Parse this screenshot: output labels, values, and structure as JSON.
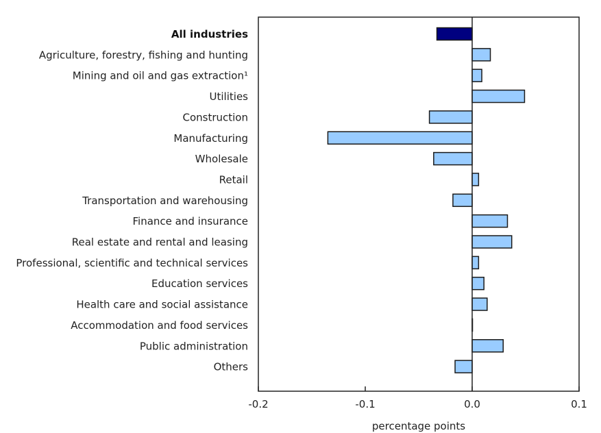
{
  "chart_data": {
    "type": "bar",
    "orientation": "horizontal",
    "title": "",
    "xlabel": "percentage points",
    "ylabel": "",
    "xlim": [
      -0.2,
      0.1
    ],
    "xticks": [
      "-0.2",
      "-0.1",
      "0.0",
      "0.1"
    ],
    "xtick_values": [
      -0.2,
      -0.1,
      0.0,
      0.1
    ],
    "grid": false,
    "legend": null,
    "categories": [
      "All industries",
      "Agriculture, forestry, fishing and hunting",
      "Mining and oil and gas extraction¹",
      "Utilities",
      "Construction",
      "Manufacturing",
      "Wholesale",
      "Retail",
      "Transportation and warehousing",
      "Finance and insurance",
      "Real estate and rental and leasing",
      "Professional, scientific and technical services",
      "Education services",
      "Health care and social assistance",
      "Accommodation and food services",
      "Public administration",
      "Others"
    ],
    "values": [
      -0.033,
      0.017,
      0.009,
      0.049,
      -0.04,
      -0.135,
      -0.036,
      0.006,
      -0.018,
      0.033,
      0.037,
      0.006,
      0.011,
      0.014,
      0.0,
      0.029,
      -0.016
    ],
    "highlight_index": 0,
    "colors": {
      "highlight": "#000080",
      "default": "#99ccff",
      "stroke": "#1a1a1a"
    }
  }
}
